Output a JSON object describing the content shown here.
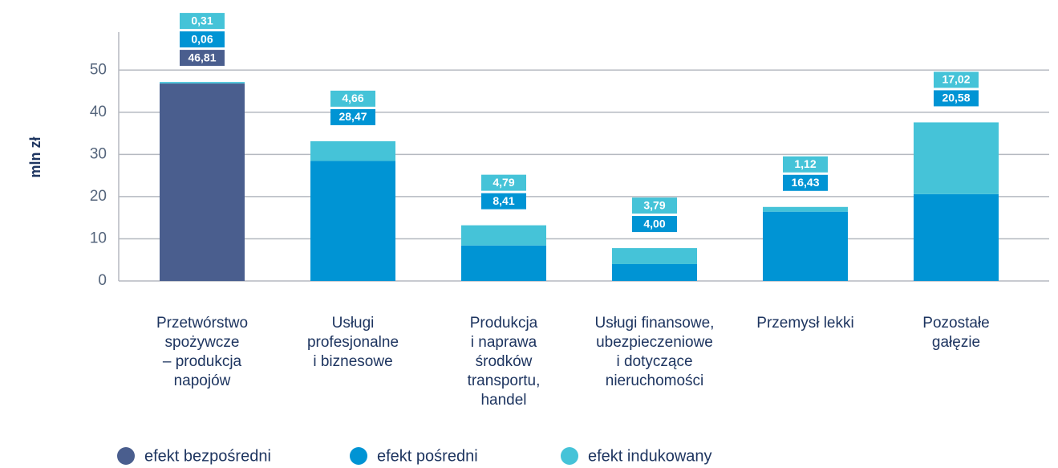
{
  "chart_data": {
    "type": "stacked_bar",
    "y_label": "mln zł",
    "categories": [
      [
        "Przetwórstwo",
        "spożywcze",
        "– produkcja",
        "napojów"
      ],
      [
        "Usługi",
        "profesjonalne",
        "i biznesowe"
      ],
      [
        "Produkcja",
        "i naprawa",
        "środków",
        "transportu,",
        "handel"
      ],
      [
        "Usługi finansowe,",
        "ubezpieczeniowe",
        "i dotyczące",
        "nieruchomości"
      ],
      [
        "Przemysł lekki"
      ],
      [
        "Pozostałe",
        "gałęzie"
      ]
    ],
    "series": [
      {
        "name": "efekt bezpośredni",
        "color": "#4a5e8e",
        "values": [
          46.81,
          null,
          null,
          null,
          null,
          null
        ],
        "value_labels": [
          "46,81",
          null,
          null,
          null,
          null,
          null
        ]
      },
      {
        "name": "efekt pośredni",
        "color": "#0094d4",
        "values": [
          0.06,
          28.47,
          8.41,
          4.0,
          16.43,
          20.58
        ],
        "value_labels": [
          "0,06",
          "28,47",
          "8,41",
          "4,00",
          "16,43",
          "20,58"
        ]
      },
      {
        "name": "efekt indukowany",
        "color": "#45c3d8",
        "values": [
          0.31,
          4.66,
          4.79,
          3.79,
          1.12,
          17.02
        ],
        "value_labels": [
          "0,31",
          "4,66",
          "4,79",
          "3,79",
          "1,12",
          "17,02"
        ]
      }
    ],
    "ylim": [
      0,
      59
    ],
    "yticks": [
      0,
      10,
      20,
      30,
      40,
      50
    ],
    "grid": true
  }
}
